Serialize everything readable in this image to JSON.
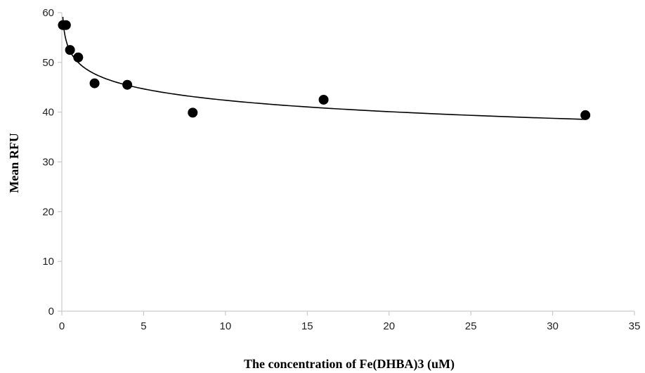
{
  "chart_data": {
    "type": "scatter",
    "title": "",
    "xlabel": "The concentration of Fe(DHBA)3 (uM)",
    "ylabel": "Mean RFU",
    "xlim": [
      0,
      35
    ],
    "ylim": [
      0,
      60
    ],
    "xticks": [
      0,
      5,
      10,
      15,
      20,
      25,
      30,
      35
    ],
    "yticks": [
      0,
      10,
      20,
      30,
      40,
      50,
      60
    ],
    "grid": false,
    "legend": "none",
    "marker_color": "#000000",
    "axis_color": "#bfbfbf",
    "trendline": "logarithmic",
    "series": [
      {
        "x": [
          0.0625,
          0.25,
          0.5,
          1,
          2,
          4,
          8,
          16,
          32
        ],
        "y": [
          57.5,
          57.5,
          52.5,
          51.0,
          45.8,
          45.5,
          39.9,
          42.5,
          39.4
        ]
      }
    ]
  }
}
